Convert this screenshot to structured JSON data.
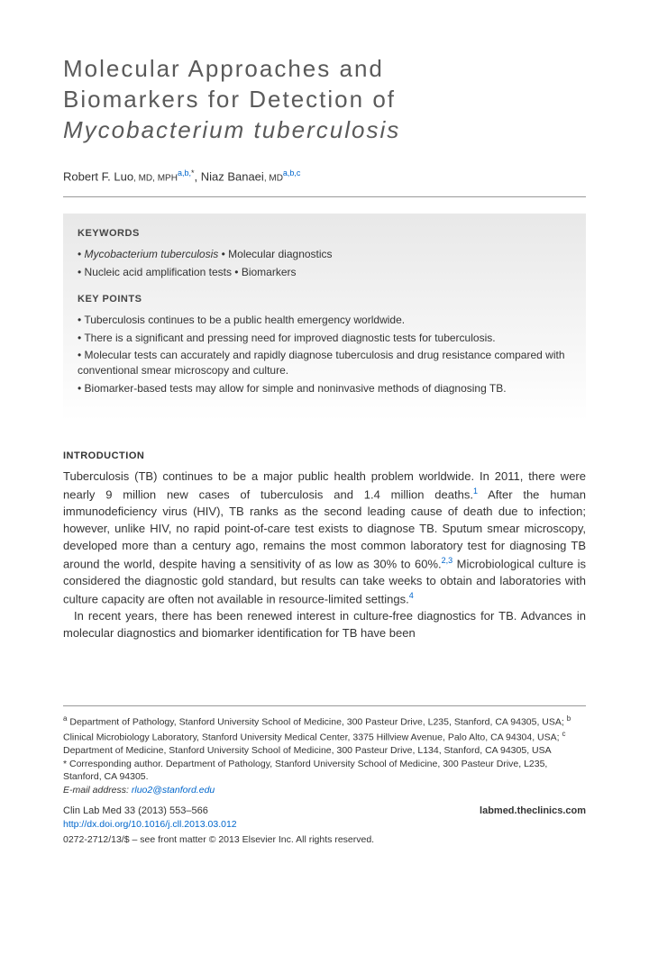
{
  "title_line1": "Molecular Approaches and",
  "title_line2": "Biomarkers for Detection of",
  "title_line3": "Mycobacterium tuberculosis",
  "authors": {
    "a1_name": "Robert F. Luo",
    "a1_degree": ", MD, MPH",
    "a1_sup": "a,b,",
    "a1_star": "*",
    "sep": ", ",
    "a2_name": "Niaz Banaei",
    "a2_degree": ", MD",
    "a2_sup": "a,b,c"
  },
  "keywords_heading": "KEYWORDS",
  "keywords": {
    "k1": "Mycobacterium tuberculosis",
    "k2": "Molecular diagnostics",
    "k3": "Nucleic acid amplification tests",
    "k4": "Biomarkers"
  },
  "keypoints_heading": "KEY POINTS",
  "keypoints": {
    "p1": "Tuberculosis continues to be a public health emergency worldwide.",
    "p2": "There is a significant and pressing need for improved diagnostic tests for tuberculosis.",
    "p3": "Molecular tests can accurately and rapidly diagnose tuberculosis and drug resistance compared with conventional smear microscopy and culture.",
    "p4": "Biomarker-based tests may allow for simple and noninvasive methods of diagnosing TB."
  },
  "intro_heading": "INTRODUCTION",
  "intro_p1a": "Tuberculosis (TB) continues to be a major public health problem worldwide. In 2011, there were nearly 9 million new cases of tuberculosis and 1.4 million deaths.",
  "intro_ref1": "1",
  "intro_p1b": " After the human immunodeficiency virus (HIV), TB ranks as the second leading cause of death due to infection; however, unlike HIV, no rapid point-of-care test exists to diagnose TB. Sputum smear microscopy, developed more than a century ago, remains the most common laboratory test for diagnosing TB around the world, despite having a sensitivity of as low as 30% to 60%.",
  "intro_ref23": "2,3",
  "intro_p1c": " Microbiological culture is considered the diagnostic gold standard, but results can take weeks to obtain and laboratories with culture capacity are often not available in resource-limited settings.",
  "intro_ref4": "4",
  "intro_p2": "In recent years, there has been renewed interest in culture-free diagnostics for TB. Advances in molecular diagnostics and biomarker identification for TB have been",
  "footer": {
    "aff_a": "a",
    "aff_a_text": " Department of Pathology, Stanford University School of Medicine, 300 Pasteur Drive, L235, Stanford, CA 94305, USA; ",
    "aff_b": "b",
    "aff_b_text": " Clinical Microbiology Laboratory, Stanford University Medical Center, 3375 Hillview Avenue, Palo Alto, CA 94304, USA; ",
    "aff_c": "c",
    "aff_c_text": " Department of Medicine, Stanford University School of Medicine, 300 Pasteur Drive, L134, Stanford, CA 94305, USA",
    "corr": "* Corresponding author. Department of Pathology, Stanford University School of Medicine, 300 Pasteur Drive, L235, Stanford, CA 94305.",
    "email_label": "E-mail address: ",
    "email": "rluo2@stanford.edu",
    "journal": "Clin Lab Med 33 (2013) 553–566",
    "doi": "http://dx.doi.org/10.1016/j.cll.2013.03.012",
    "site": "labmed.theclinics.com",
    "copyright": "0272-2712/13/$ – see front matter © 2013 Elsevier Inc. All rights reserved."
  }
}
